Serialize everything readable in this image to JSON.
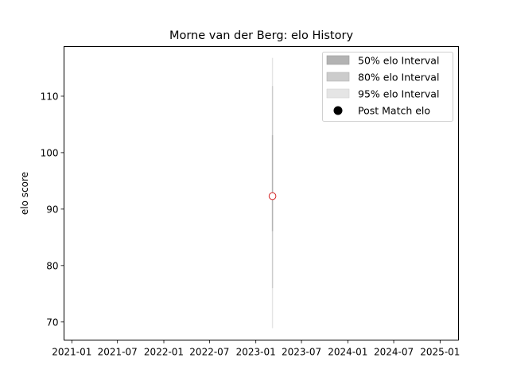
{
  "chart_data": {
    "type": "line",
    "title": "Morne van der Berg: elo History",
    "xlabel": "",
    "ylabel": "elo score",
    "x_ticks": [
      "2021-01",
      "2021-07",
      "2022-01",
      "2022-07",
      "2023-01",
      "2023-07",
      "2024-01",
      "2024-07",
      "2025-01"
    ],
    "xlim": [
      "2020-12-01",
      "2025-03-15"
    ],
    "y_ticks": [
      70,
      80,
      90,
      100,
      110
    ],
    "ylim": [
      66.8,
      118.8
    ],
    "grid": false,
    "legend_position": "top-right",
    "series": [
      {
        "name": "50% elo Interval",
        "color": "#b3b3b3"
      },
      {
        "name": "80% elo Interval",
        "color": "#cccccc"
      },
      {
        "name": "95% elo Interval",
        "color": "#e5e5e5"
      },
      {
        "name": "Post Match elo",
        "color": "#000000"
      }
    ],
    "points": [
      {
        "date": "2023-03-08",
        "elo": 92.3,
        "interval_50": [
          86.1,
          103.1
        ],
        "interval_80": [
          76.0,
          111.8
        ],
        "interval_95": [
          68.9,
          116.8
        ]
      }
    ],
    "marker": {
      "face": "#ffffff",
      "edge": "#d62728"
    }
  }
}
